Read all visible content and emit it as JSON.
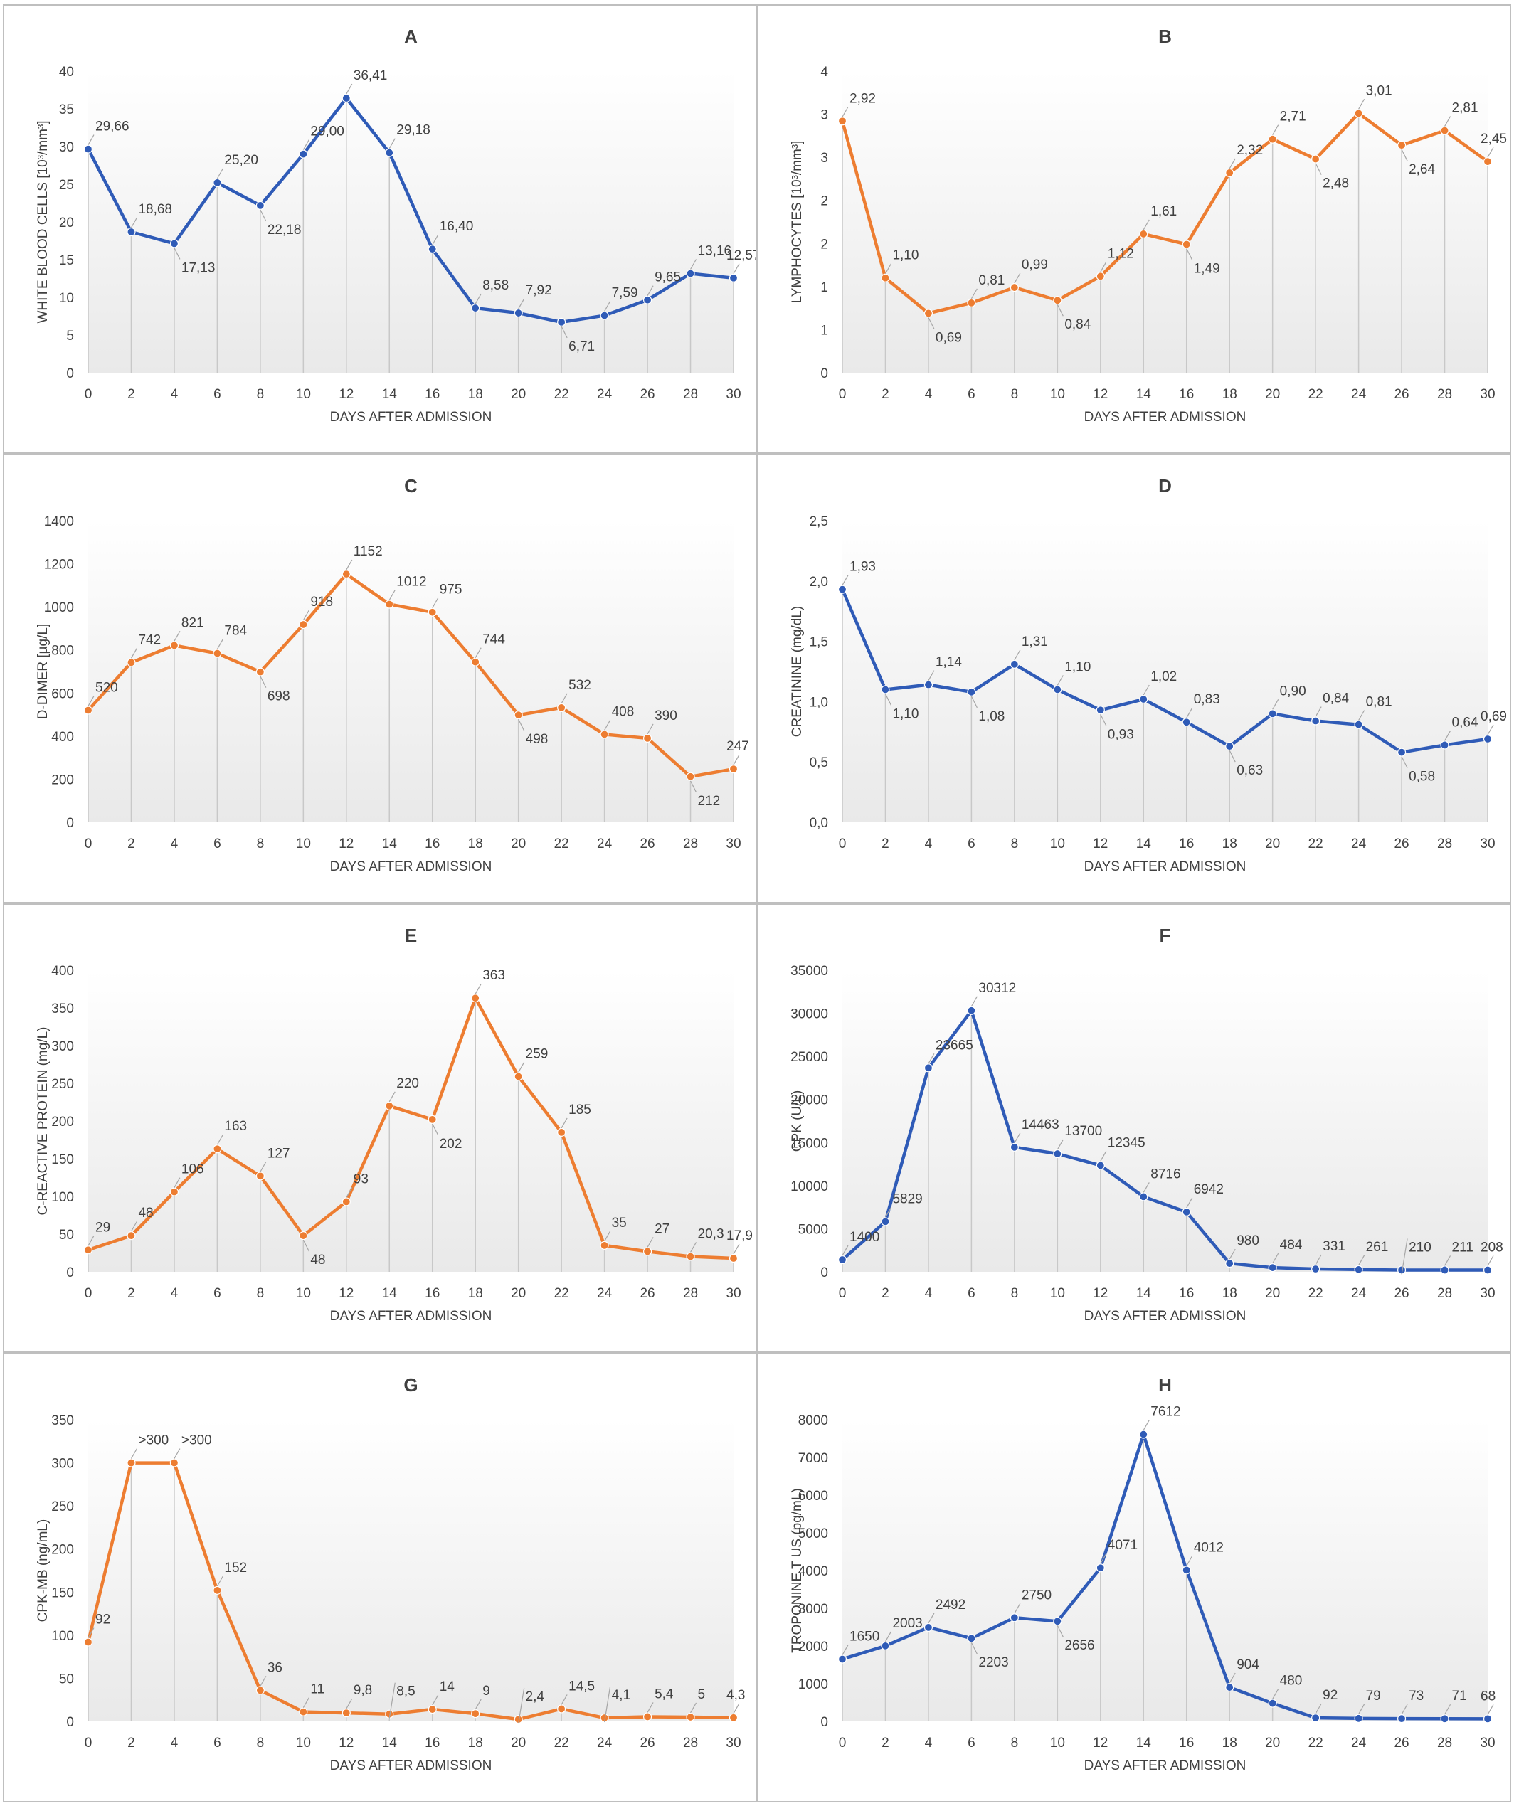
{
  "xlabel": "DAYS AFTER ADMISSION",
  "chart_data": [
    {
      "type": "line",
      "title": "A",
      "ylabel": "WHITE BLOOD CELLS [10³/mm³]",
      "xlabel": "DAYS AFTER ADMISSION",
      "x": [
        0,
        2,
        4,
        6,
        8,
        10,
        12,
        14,
        16,
        18,
        20,
        22,
        24,
        26,
        28,
        30
      ],
      "values": [
        29.66,
        18.68,
        17.13,
        25.2,
        22.18,
        29.0,
        36.41,
        29.18,
        16.4,
        8.58,
        7.92,
        6.71,
        7.59,
        9.65,
        13.16,
        12.57
      ],
      "labels": [
        "29,66",
        "18,68",
        "17,13",
        "25,20",
        "22,18",
        "29,00",
        "36,41",
        "29,18",
        "16,40",
        "8,58",
        "7,92",
        "6,71",
        "7,59",
        "9,65",
        "13,16",
        "12,57"
      ],
      "yticks": [
        "0",
        "5",
        "10",
        "15",
        "20",
        "25",
        "30",
        "35",
        "40"
      ],
      "ylim": [
        0,
        40
      ],
      "color": "#2f5bb7",
      "grid": false
    },
    {
      "type": "line",
      "title": "B",
      "ylabel": "LYMPHOCYTES [10³/mm³]",
      "xlabel": "DAYS AFTER ADMISSION",
      "x": [
        0,
        2,
        4,
        6,
        8,
        10,
        12,
        14,
        16,
        18,
        20,
        22,
        24,
        26,
        28,
        30
      ],
      "values": [
        2.92,
        1.1,
        0.69,
        0.81,
        0.99,
        0.84,
        1.12,
        1.61,
        1.49,
        2.32,
        2.71,
        2.48,
        3.01,
        2.64,
        2.81,
        2.45
      ],
      "labels": [
        "2,92",
        "1,10",
        "0,69",
        "0,81",
        "0,99",
        "0,84",
        "1,12",
        "1,61",
        "1,49",
        "2,32",
        "2,71",
        "2,48",
        "3,01",
        "2,64",
        "2,81",
        "2,45"
      ],
      "yticks": [
        "0",
        "1",
        "1",
        "2",
        "2",
        "3",
        "3",
        "4"
      ],
      "ylim": [
        0,
        3.5
      ],
      "color": "#ed7d31",
      "grid": false
    },
    {
      "type": "line",
      "title": "C",
      "ylabel": "D-DIMER [µg/L]",
      "xlabel": "DAYS AFTER ADMISSION",
      "x": [
        0,
        2,
        4,
        6,
        8,
        10,
        12,
        14,
        16,
        18,
        20,
        22,
        24,
        26,
        28,
        30
      ],
      "values": [
        520,
        742,
        821,
        784,
        698,
        918,
        1152,
        1012,
        975,
        744,
        498,
        532,
        408,
        390,
        212,
        247
      ],
      "labels": [
        "520",
        "742",
        "821",
        "784",
        "698",
        "918",
        "1152",
        "1012",
        "975",
        "744",
        "498",
        "532",
        "408",
        "390",
        "212",
        "247"
      ],
      "yticks": [
        "0",
        "200",
        "400",
        "600",
        "800",
        "1000",
        "1200",
        "1400"
      ],
      "ylim": [
        0,
        1400
      ],
      "color": "#ed7d31",
      "grid": false
    },
    {
      "type": "line",
      "title": "D",
      "ylabel": "CREATININE (mg/dL)",
      "xlabel": "DAYS AFTER ADMISSION",
      "x": [
        0,
        2,
        4,
        6,
        8,
        10,
        12,
        14,
        16,
        18,
        20,
        22,
        24,
        26,
        28,
        30
      ],
      "values": [
        1.93,
        1.1,
        1.14,
        1.08,
        1.31,
        1.1,
        0.93,
        1.02,
        0.83,
        0.63,
        0.9,
        0.84,
        0.81,
        0.58,
        0.64,
        0.69
      ],
      "labels": [
        "1,93",
        "1,10",
        "1,14",
        "1,08",
        "1,31",
        "1,10",
        "0,93",
        "1,02",
        "0,83",
        "0,63",
        "0,90",
        "0,84",
        "0,81",
        "0,58",
        "0,64",
        "0,69"
      ],
      "yticks": [
        "0,0",
        "0,5",
        "1,0",
        "1,5",
        "2,0",
        "2,5"
      ],
      "ylim": [
        0,
        2.5
      ],
      "color": "#2f5bb7",
      "grid": false
    },
    {
      "type": "line",
      "title": "E",
      "ylabel": "C-REACTIVE PROTEIN (mg/L)",
      "xlabel": "DAYS AFTER ADMISSION",
      "x": [
        0,
        2,
        4,
        6,
        8,
        10,
        12,
        14,
        16,
        18,
        20,
        22,
        24,
        26,
        28,
        30
      ],
      "values": [
        29,
        48,
        106,
        163,
        127,
        48,
        93,
        220,
        202,
        363,
        259,
        185,
        35,
        27,
        20.3,
        17.9
      ],
      "labels": [
        "29",
        "48",
        "106",
        "163",
        "127",
        "48",
        "93",
        "220",
        "202",
        "363",
        "259",
        "185",
        "35",
        "27",
        "20,3",
        "17,9"
      ],
      "yticks": [
        "0",
        "50",
        "100",
        "150",
        "200",
        "250",
        "300",
        "350",
        "400"
      ],
      "ylim": [
        0,
        400
      ],
      "color": "#ed7d31",
      "grid": false
    },
    {
      "type": "line",
      "title": "F",
      "ylabel": "CPK (U/L)",
      "xlabel": "DAYS AFTER ADMISSION",
      "x": [
        0,
        2,
        4,
        6,
        8,
        10,
        12,
        14,
        16,
        18,
        20,
        22,
        24,
        26,
        28,
        30
      ],
      "values": [
        1400,
        5829,
        23665,
        30312,
        14463,
        13700,
        12345,
        8716,
        6942,
        980,
        484,
        331,
        261,
        210,
        211,
        208
      ],
      "labels": [
        "1400",
        "5829",
        "23665",
        "30312",
        "14463",
        "13700",
        "12345",
        "8716",
        "6942",
        "980",
        "484",
        "331",
        "261",
        "210",
        "211",
        "208"
      ],
      "yticks": [
        "0",
        "5000",
        "10000",
        "15000",
        "20000",
        "25000",
        "30000",
        "35000"
      ],
      "ylim": [
        0,
        35000
      ],
      "color": "#2f5bb7",
      "grid": false
    },
    {
      "type": "line",
      "title": "G",
      "ylabel": "CPK-MB (ng/mL)",
      "xlabel": "DAYS AFTER ADMISSION",
      "x": [
        0,
        2,
        4,
        6,
        8,
        10,
        12,
        14,
        16,
        18,
        20,
        22,
        24,
        26,
        28,
        30
      ],
      "values": [
        92,
        300,
        300,
        152,
        36,
        11,
        9.8,
        8.5,
        14,
        9,
        2.4,
        14.5,
        4.1,
        5.4,
        5,
        4.3
      ],
      "labels": [
        "92",
        ">300",
        ">300",
        "152",
        "36",
        "11",
        "9,8",
        "8,5",
        "14",
        "9",
        "2,4",
        "14,5",
        "4,1",
        "5,4",
        "5",
        "4,3"
      ],
      "yticks": [
        "0",
        "50",
        "100",
        "150",
        "200",
        "250",
        "300",
        "350"
      ],
      "ylim": [
        0,
        350
      ],
      "color": "#ed7d31",
      "grid": false
    },
    {
      "type": "line",
      "title": "H",
      "ylabel": "TROPONINE T US (pg/mL)",
      "xlabel": "DAYS AFTER ADMISSION",
      "x": [
        0,
        2,
        4,
        6,
        8,
        10,
        12,
        14,
        16,
        18,
        20,
        22,
        24,
        26,
        28,
        30
      ],
      "values": [
        1650,
        2003,
        2492,
        2203,
        2750,
        2656,
        4071,
        7612,
        4012,
        904,
        480,
        92,
        79,
        73,
        71,
        68
      ],
      "labels": [
        "1650",
        "2003",
        "2492",
        "2203",
        "2750",
        "2656",
        "4071",
        "7612",
        "4012",
        "904",
        "480",
        "92",
        "79",
        "73",
        "71",
        "68"
      ],
      "yticks": [
        "0",
        "1000",
        "2000",
        "3000",
        "4000",
        "5000",
        "6000",
        "7000",
        "8000"
      ],
      "ylim": [
        0,
        8000
      ],
      "color": "#2f5bb7",
      "grid": false
    }
  ]
}
